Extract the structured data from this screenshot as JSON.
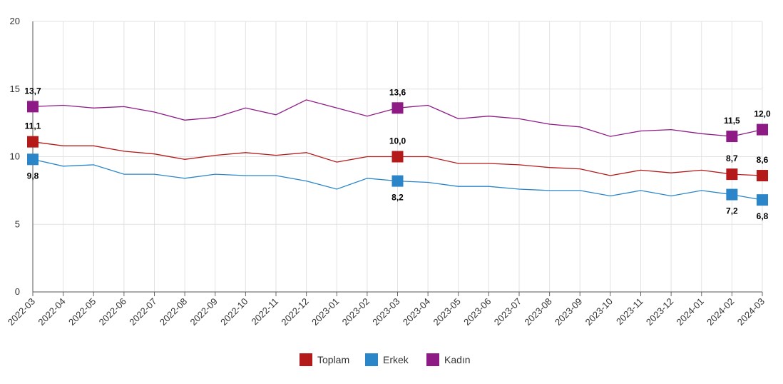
{
  "chart_data": {
    "type": "line",
    "title": "",
    "xlabel": "",
    "ylabel": "",
    "ylim": [
      0,
      20
    ],
    "yticks": [
      0,
      5,
      10,
      15,
      20
    ],
    "grid": true,
    "legend_position": "bottom-center",
    "categories": [
      "2022-03",
      "2022-04",
      "2022-05",
      "2022-06",
      "2022-07",
      "2022-08",
      "2022-09",
      "2022-10",
      "2022-11",
      "2022-12",
      "2023-01",
      "2023-02",
      "2023-03",
      "2023-04",
      "2023-05",
      "2023-06",
      "2023-07",
      "2023-08",
      "2023-09",
      "2023-10",
      "2023-11",
      "2023-12",
      "2024-01",
      "2024-02",
      "2024-03"
    ],
    "series": [
      {
        "name": "Toplam",
        "color": "#b41a1a",
        "values": [
          11.1,
          10.8,
          10.8,
          10.4,
          10.2,
          9.8,
          10.1,
          10.3,
          10.1,
          10.3,
          9.6,
          10.0,
          10.0,
          10.0,
          9.5,
          9.5,
          9.4,
          9.2,
          9.1,
          8.6,
          9.0,
          8.8,
          9.0,
          8.7,
          8.6
        ],
        "labels": [
          {
            "index": 0,
            "text": "11,1",
            "pos": "above"
          },
          {
            "index": 12,
            "text": "10,0",
            "pos": "above"
          },
          {
            "index": 23,
            "text": "8,7",
            "pos": "above"
          },
          {
            "index": 24,
            "text": "8,6",
            "pos": "above"
          }
        ]
      },
      {
        "name": "Erkek",
        "color": "#2a86c9",
        "values": [
          9.8,
          9.3,
          9.4,
          8.7,
          8.7,
          8.4,
          8.7,
          8.6,
          8.6,
          8.2,
          7.6,
          8.4,
          8.2,
          8.1,
          7.8,
          7.8,
          7.6,
          7.5,
          7.5,
          7.1,
          7.5,
          7.1,
          7.5,
          7.2,
          6.8
        ],
        "labels": [
          {
            "index": 0,
            "text": "9,8",
            "pos": "below"
          },
          {
            "index": 12,
            "text": "8,2",
            "pos": "below"
          },
          {
            "index": 23,
            "text": "7,2",
            "pos": "below"
          },
          {
            "index": 24,
            "text": "6,8",
            "pos": "below"
          }
        ]
      },
      {
        "name": "Kadın",
        "color": "#8e1a86",
        "values": [
          13.7,
          13.8,
          13.6,
          13.7,
          13.3,
          12.7,
          12.9,
          13.6,
          13.1,
          14.2,
          13.6,
          13.0,
          13.6,
          13.8,
          12.8,
          13.0,
          12.8,
          12.4,
          12.2,
          11.5,
          11.9,
          12.0,
          11.7,
          11.5,
          12.0
        ],
        "labels": [
          {
            "index": 0,
            "text": "13,7",
            "pos": "above"
          },
          {
            "index": 12,
            "text": "13,6",
            "pos": "above"
          },
          {
            "index": 23,
            "text": "11,5",
            "pos": "above"
          },
          {
            "index": 24,
            "text": "12,0",
            "pos": "above"
          }
        ]
      }
    ]
  }
}
